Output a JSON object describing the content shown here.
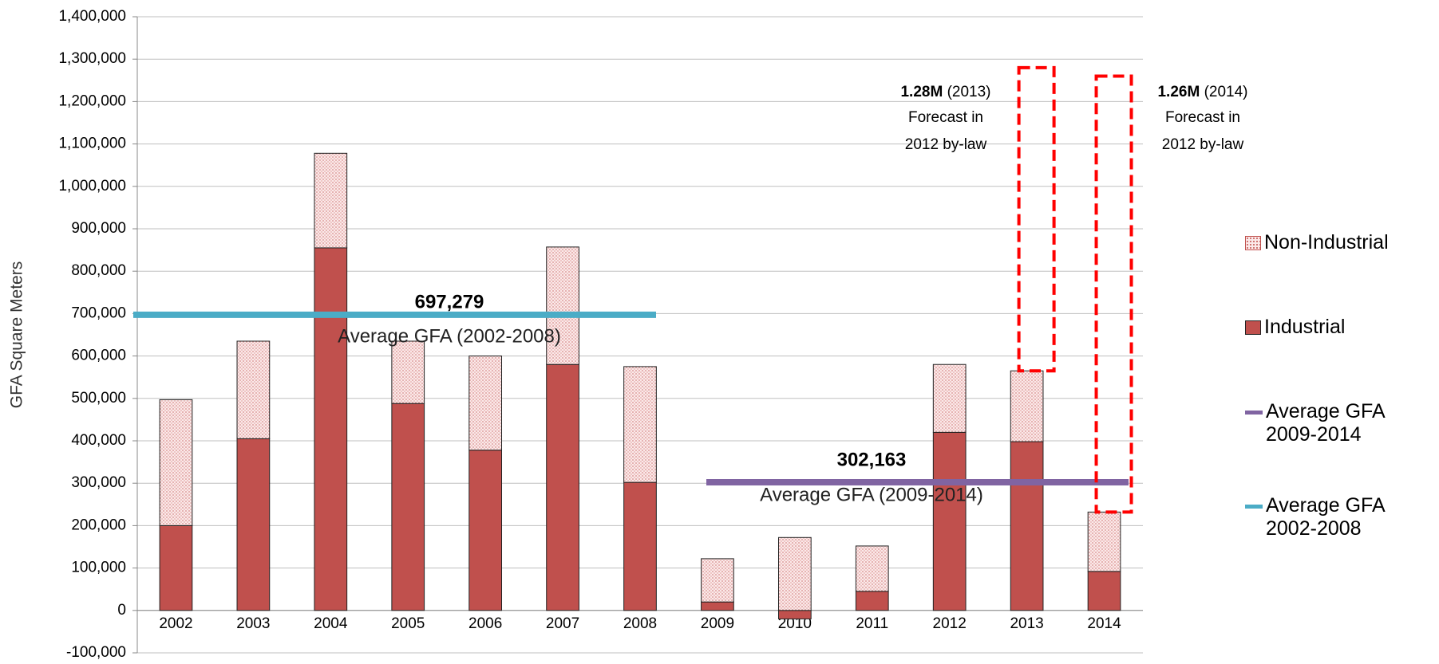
{
  "chart_data": {
    "type": "bar",
    "y_label": "GFA Square Meters",
    "categories": [
      "2002",
      "2003",
      "2004",
      "2005",
      "2006",
      "2007",
      "2008",
      "2009",
      "2010",
      "2011",
      "2012",
      "2013",
      "2014"
    ],
    "series": [
      {
        "name": "Industrial",
        "color": "#c0504d",
        "values": [
          200000,
          405000,
          855000,
          488000,
          378000,
          580000,
          302000,
          20000,
          -20000,
          45000,
          420000,
          398000,
          92000
        ]
      },
      {
        "name": "Non-Industrial",
        "color": "#f2c4c4",
        "values": [
          297000,
          230000,
          223000,
          147000,
          222000,
          277000,
          273000,
          102000,
          172000,
          107000,
          160000,
          167000,
          140000
        ]
      }
    ],
    "averages": [
      {
        "name": "Average GFA 2009-2014",
        "color": "#8064a2",
        "value": 302163,
        "value_label": "302,163",
        "caption": "Average GFA (2009-2014)"
      },
      {
        "name": "Average GFA 2002-2008",
        "color": "#4bacc6",
        "value": 697279,
        "value_label": "697,279",
        "caption": "Average GFA (2002-2008)"
      }
    ],
    "forecasts": [
      {
        "value": 1280000,
        "value_label": "1.28M",
        "year": "(2013)",
        "note": [
          "Forecast in",
          "2012 by-law"
        ]
      },
      {
        "value": 1260000,
        "value_label": "1.26M",
        "year": "(2014)",
        "note": [
          "Forecast in",
          "2012 by-law"
        ]
      }
    ],
    "forecast_color": "#ff0000",
    "ylim": [
      -100000,
      1400000
    ],
    "yticks": [
      {
        "value": -100000,
        "label": "-100,000"
      },
      0,
      {
        "value": 100000,
        "label": "100,000"
      },
      {
        "value": 200000,
        "label": "200,000"
      },
      {
        "value": 300000,
        "label": "300,000"
      },
      {
        "value": 400000,
        "label": "400,000"
      },
      {
        "value": 500000,
        "label": "500,000"
      },
      {
        "value": 600000,
        "label": "600,000"
      },
      {
        "value": 700000,
        "label": "700,000"
      },
      {
        "value": 800000,
        "label": "800,000"
      },
      {
        "value": 900000,
        "label": "900,000"
      },
      {
        "value": 1000000,
        "label": "1,000,000"
      },
      {
        "value": 1100000,
        "label": "1,100,000"
      },
      {
        "value": 1200000,
        "label": "1,200,000"
      },
      {
        "value": 1300000,
        "label": "1,300,000"
      },
      {
        "value": 1400000,
        "label": "1,400,000"
      }
    ],
    "grid": true
  }
}
